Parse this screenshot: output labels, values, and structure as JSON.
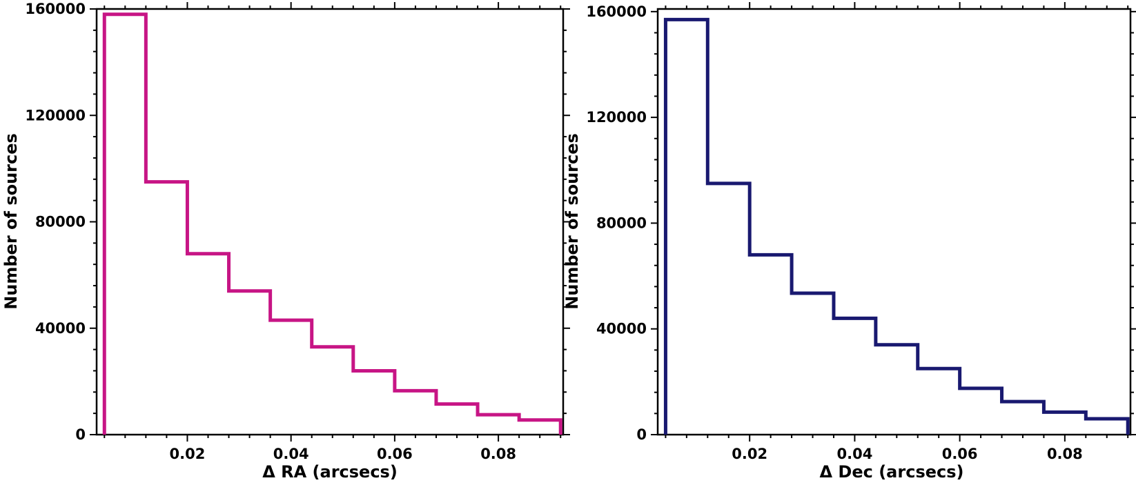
{
  "chart_data": [
    {
      "type": "histogram",
      "xlabel": "Δ RA (arcsecs)",
      "ylabel": "Number of sources",
      "color": "#C71585",
      "xlim": [
        0.0025,
        0.0925
      ],
      "ylim": [
        0,
        160000
      ],
      "xticks": [
        0.02,
        0.04,
        0.06,
        0.08
      ],
      "xtick_labels": [
        "0.02",
        "0.04",
        "0.06",
        "0.08"
      ],
      "yticks": [
        0,
        40000,
        80000,
        120000,
        160000
      ],
      "ytick_labels": [
        "0",
        "40000",
        "80000",
        "120000",
        "160000"
      ],
      "bin_edges": [
        0.004,
        0.012,
        0.02,
        0.028,
        0.036,
        0.044,
        0.052,
        0.06,
        0.068,
        0.076,
        0.084,
        0.092
      ],
      "counts": [
        158000,
        95000,
        68000,
        54000,
        43000,
        33000,
        24000,
        16500,
        11500,
        7500,
        5500
      ]
    },
    {
      "type": "histogram",
      "xlabel": "Δ Dec (arcsecs)",
      "ylabel": "Number of sources",
      "color": "#191970",
      "xlim": [
        0.0025,
        0.0925
      ],
      "ylim": [
        0,
        161000
      ],
      "xticks": [
        0.02,
        0.04,
        0.06,
        0.08
      ],
      "xtick_labels": [
        "0.02",
        "0.04",
        "0.06",
        "0.08"
      ],
      "yticks": [
        0,
        40000,
        80000,
        120000,
        160000
      ],
      "ytick_labels": [
        "0",
        "40000",
        "80000",
        "120000",
        "160000"
      ],
      "bin_edges": [
        0.004,
        0.012,
        0.02,
        0.028,
        0.036,
        0.044,
        0.052,
        0.06,
        0.068,
        0.076,
        0.084,
        0.092
      ],
      "counts": [
        157000,
        95000,
        68000,
        53500,
        44000,
        34000,
        25000,
        17500,
        12500,
        8500,
        6000
      ]
    }
  ]
}
